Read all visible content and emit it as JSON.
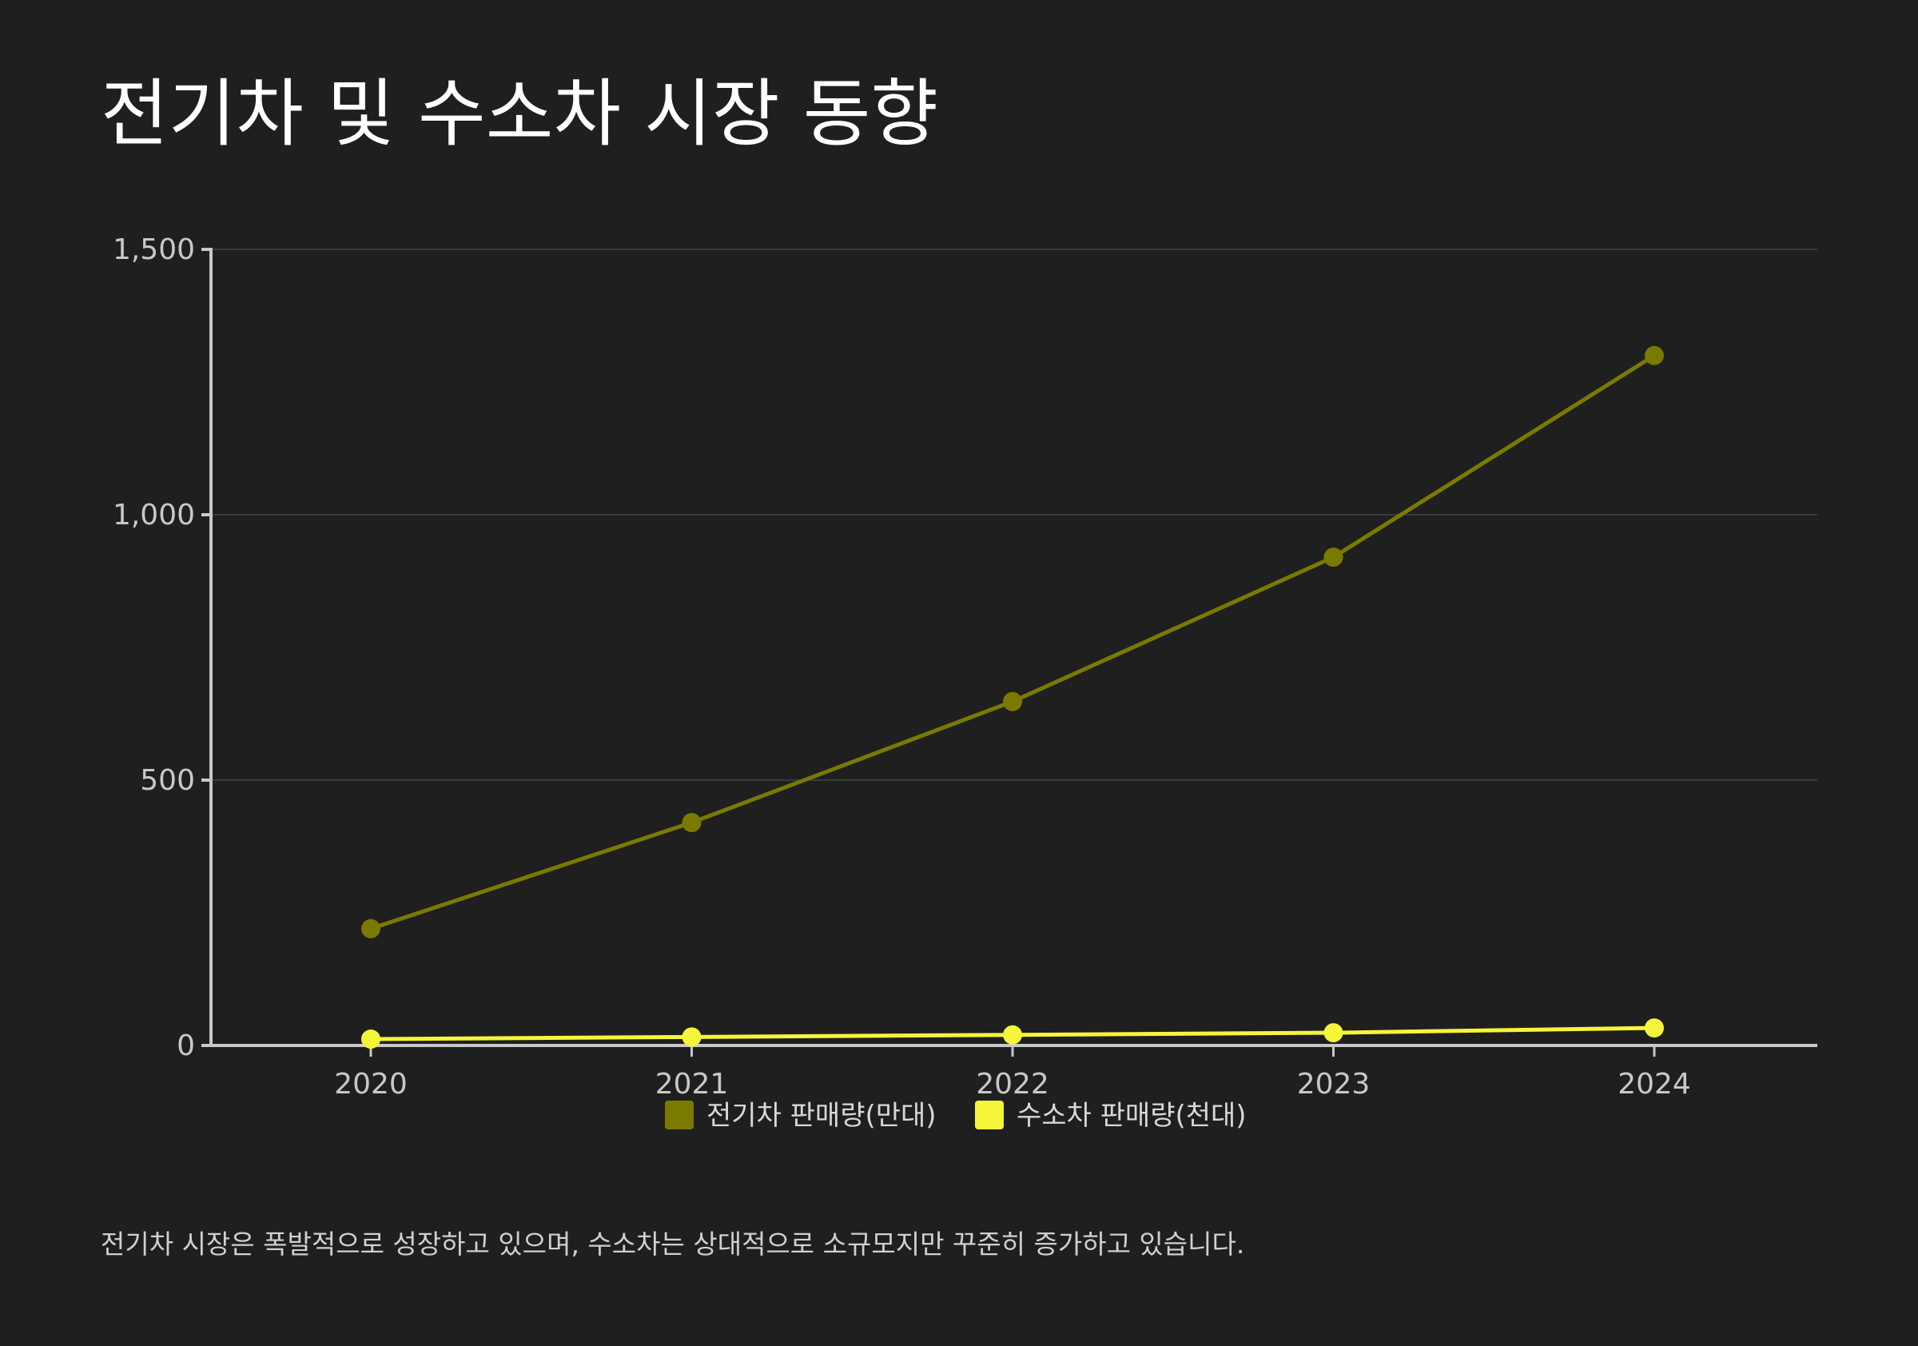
{
  "title": "전기차 및 수소차 시장 동향",
  "caption": "전기차 시장은 폭발적으로 성장하고 있으며, 수소차는 상대적으로 소규모지만 꾸준히 증가하고 있습니다.",
  "colors": {
    "background": "#1f1f1f",
    "ev": "#7a7a00",
    "hydrogen": "#f5f53a",
    "grid": "#444444",
    "axis": "#c8c8c8"
  },
  "chart_data": {
    "type": "line",
    "title": "전기차 및 수소차 시장 동향",
    "xlabel": "",
    "ylabel": "",
    "categories": [
      "2020",
      "2021",
      "2022",
      "2023",
      "2024"
    ],
    "ylim": [
      0,
      1500
    ],
    "yticks": [
      0,
      500,
      1000,
      1500
    ],
    "ytick_labels": [
      "0",
      "500",
      "1,000",
      "1,500"
    ],
    "grid": true,
    "legend_position": "bottom",
    "series": [
      {
        "name": "전기차 판매량(만대)",
        "values": [
          220,
          420,
          648,
          920,
          1300
        ],
        "color": "#7a7a00"
      },
      {
        "name": "수소차 판매량(천대)",
        "values": [
          12,
          16,
          20,
          24,
          33
        ],
        "color": "#f5f53a"
      }
    ]
  }
}
